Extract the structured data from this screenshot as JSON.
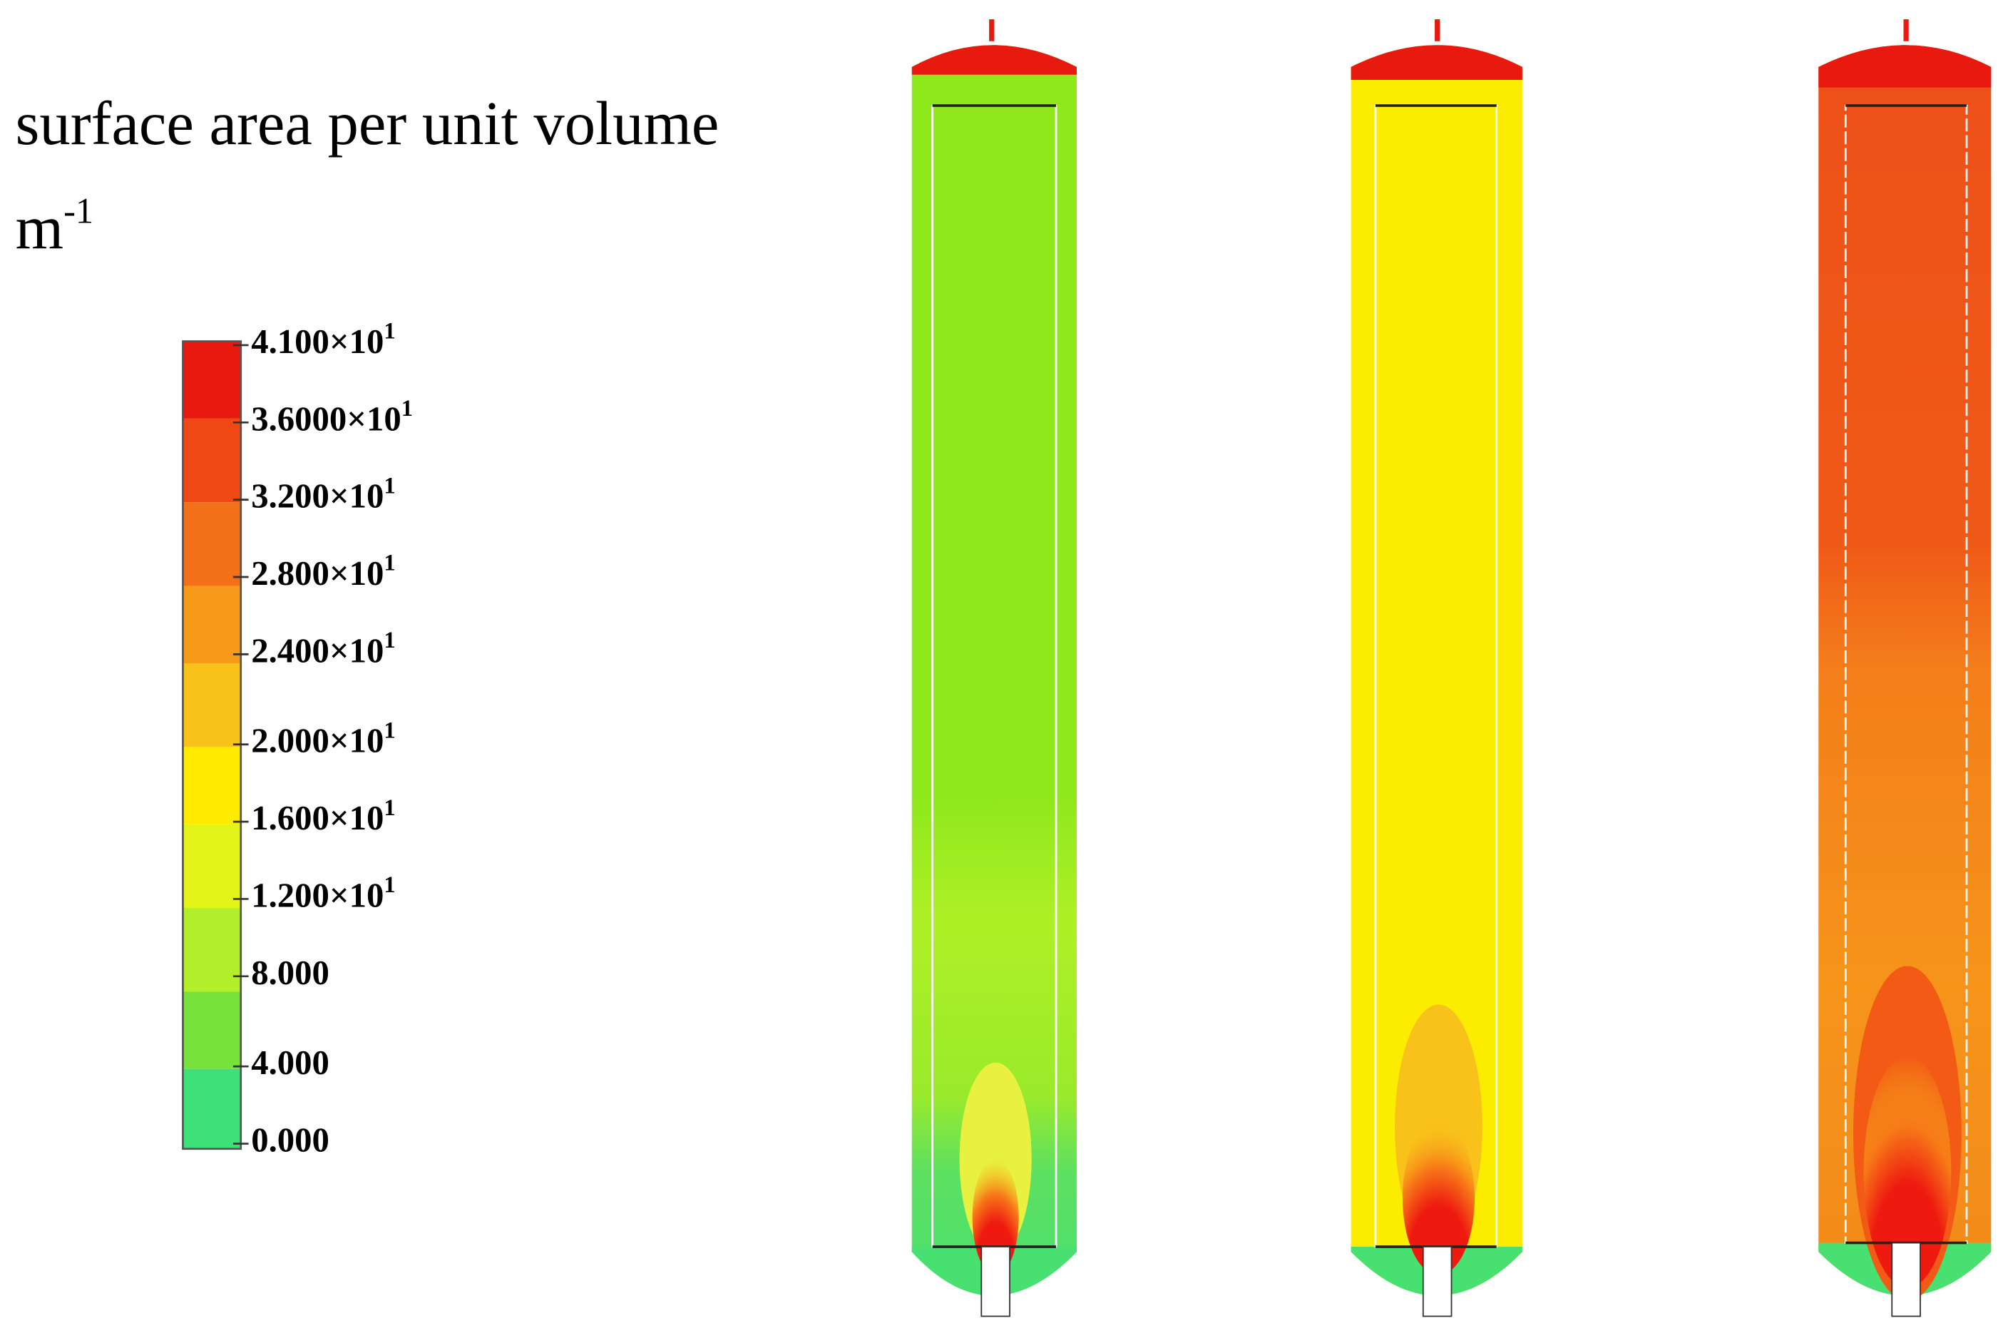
{
  "legend": {
    "title": "surface area per unit volume",
    "unit": {
      "base": "m",
      "exponent": "-1"
    },
    "labels": [
      {
        "text": "4.100×10",
        "exponent": "1"
      },
      {
        "text": "3.6000×10",
        "exponent": "1"
      },
      {
        "text": "3.200×10",
        "exponent": "1"
      },
      {
        "text": "2.800×10",
        "exponent": "1"
      },
      {
        "text": "2.400×10",
        "exponent": "1"
      },
      {
        "text": "2.000×10",
        "exponent": "1"
      },
      {
        "text": "1.600×10",
        "exponent": "1"
      },
      {
        "text": "1.200×10",
        "exponent": "1"
      },
      {
        "text": "8.000"
      },
      {
        "text": "4.000"
      },
      {
        "text": "0.000"
      }
    ]
  }
}
